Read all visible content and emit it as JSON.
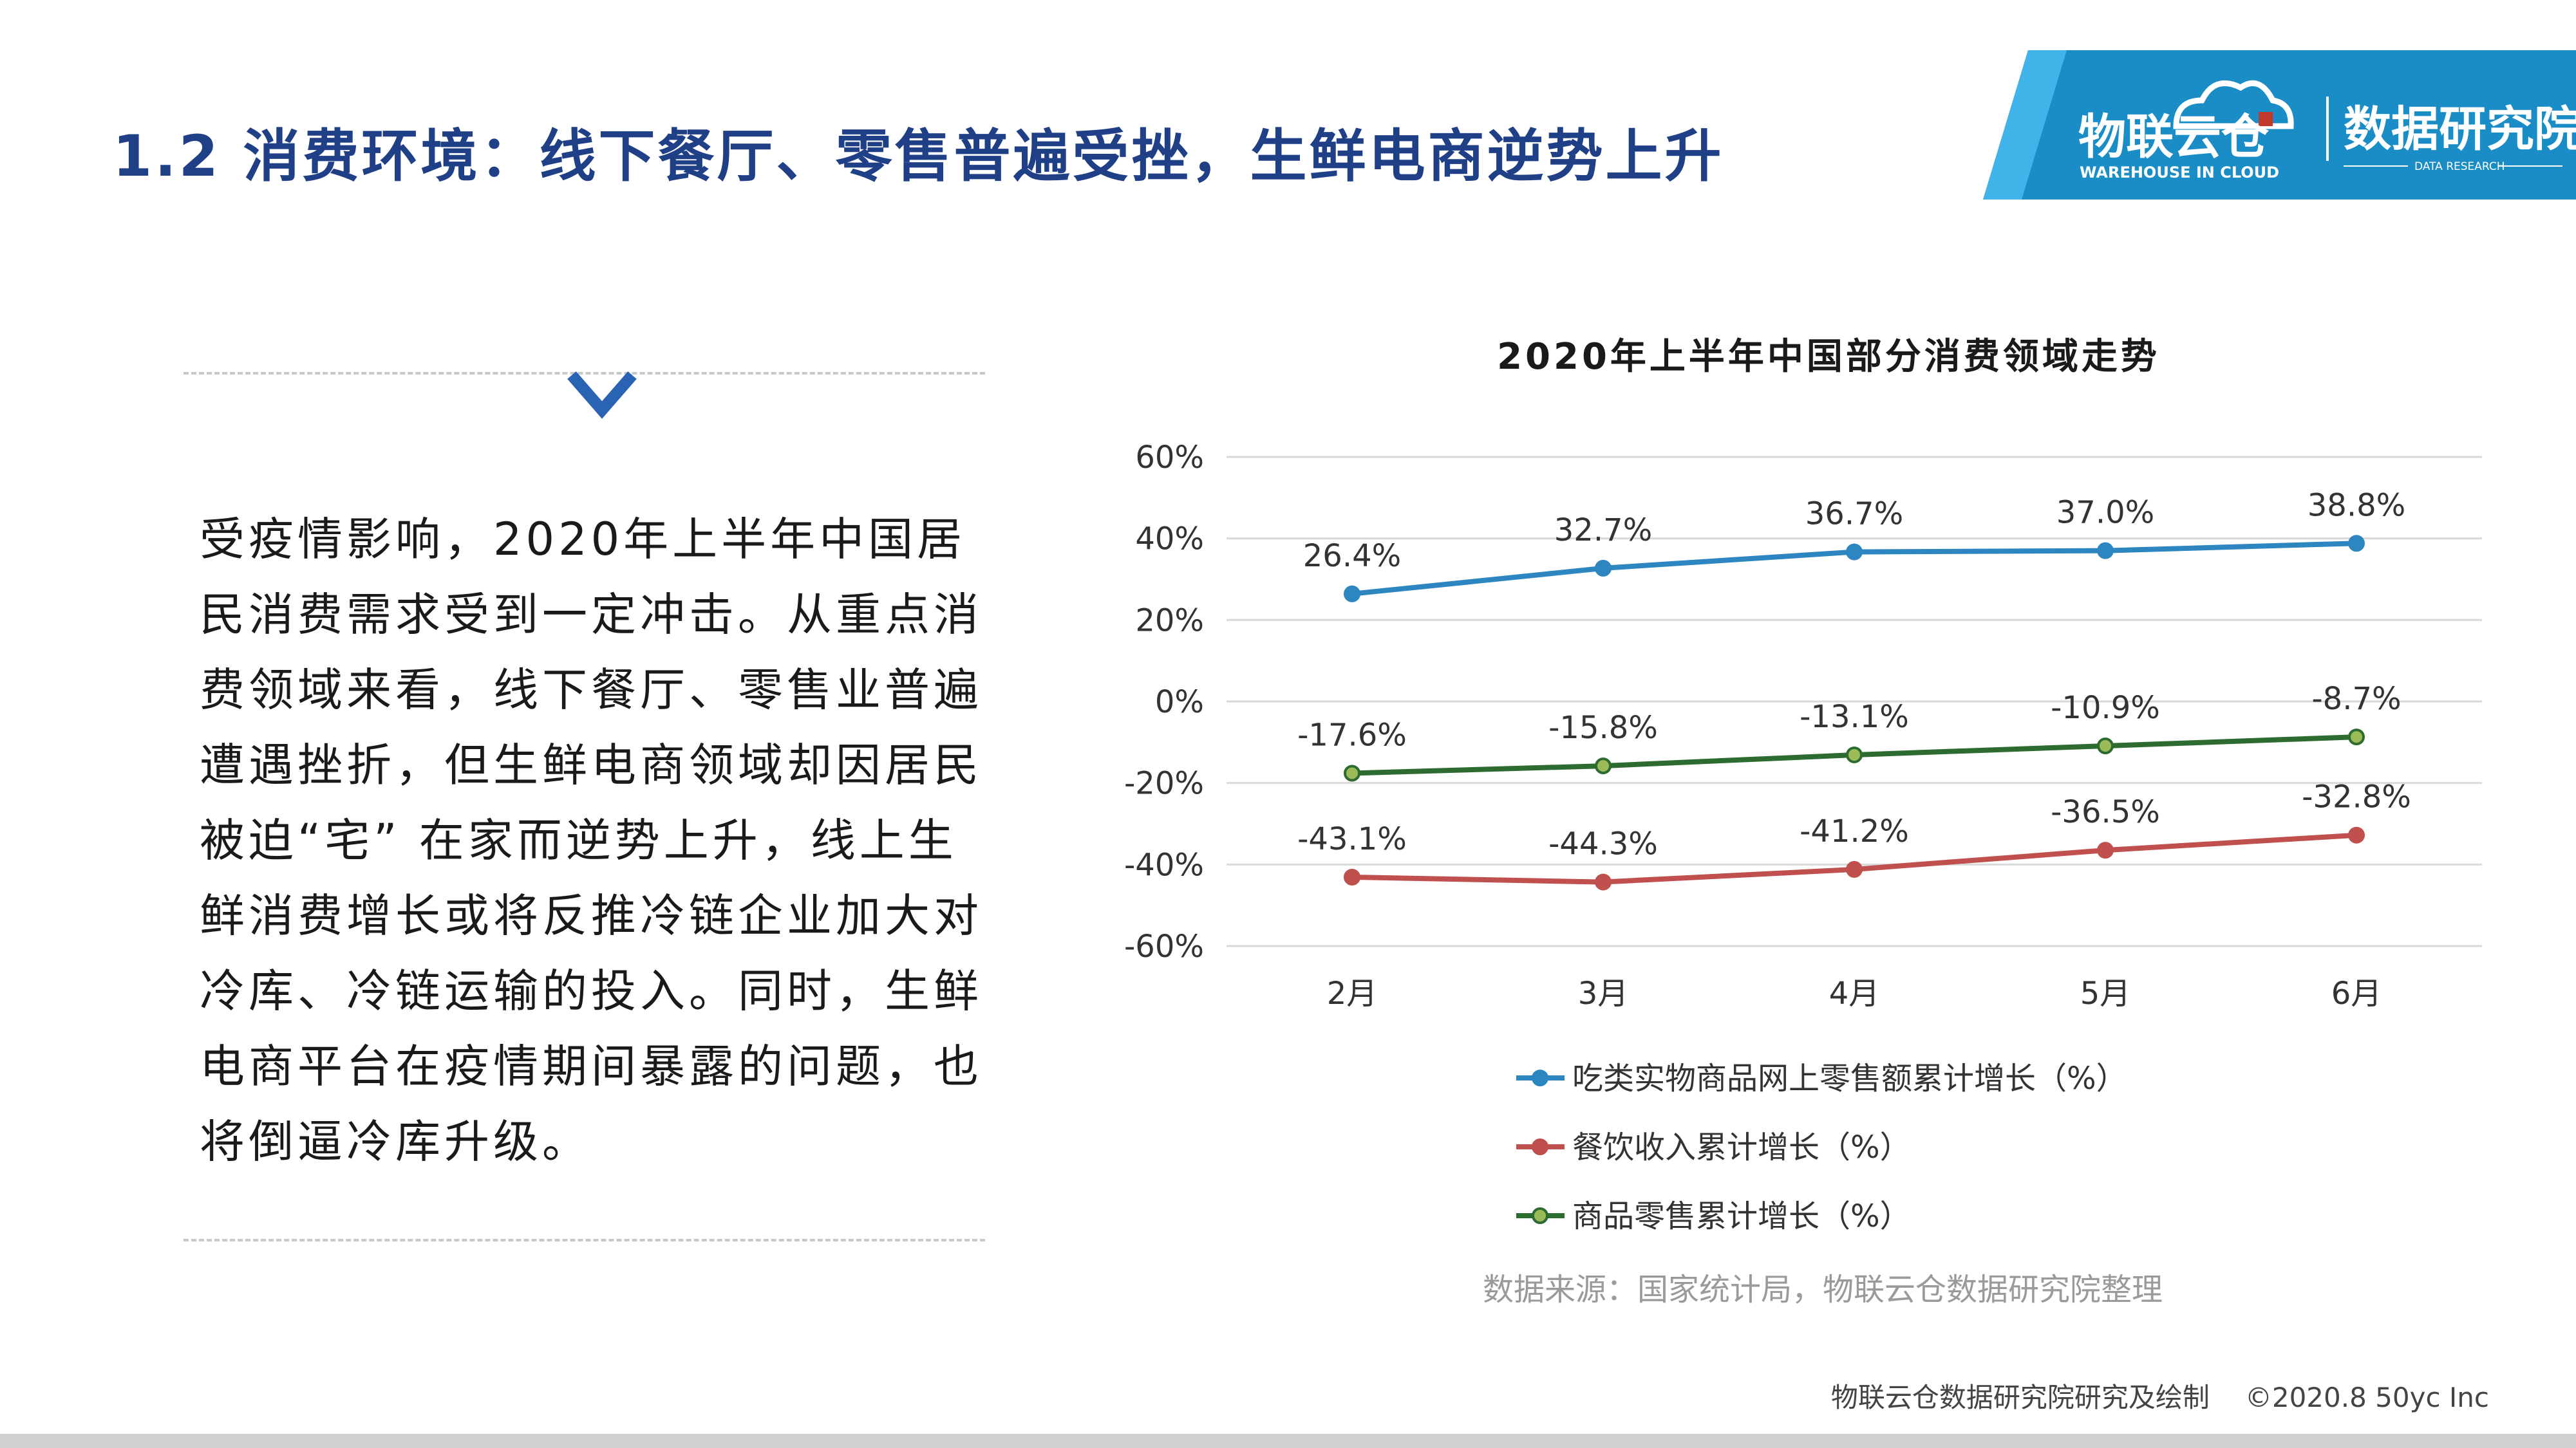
{
  "header": {
    "title": "1.2 消费环境：线下餐厅、零售普遍受挫，生鲜电商逆势上升",
    "logo_brand": "物联云仓",
    "logo_brand_en": "WAREHOUSE IN CLOUD",
    "logo_dept": "数据研究院",
    "logo_dept_en": "DATA RESEARCH"
  },
  "body": {
    "paragraph": "受疫情影响，2020年上半年中国居民消费需求受到一定冲击。从重点消费领域来看，线下餐厅、零售业普遍遭遇挫折，但生鲜电商领域却因居民被迫“宅” 在家而逆势上升，线上生鲜消费增长或将反推冷链企业加大对冷库、冷链运输的投入。同时，生鲜电商平台在疫情期间暴露的问题，也将倒逼冷库升级。"
  },
  "chart_data": {
    "type": "line",
    "title": "2020年上半年中国部分消费领域走势",
    "categories": [
      "2月",
      "3月",
      "4月",
      "5月",
      "6月"
    ],
    "ylim": [
      -60,
      60
    ],
    "yticks": [
      60,
      40,
      20,
      0,
      -20,
      -40,
      -60
    ],
    "ytick_labels": [
      "60%",
      "40%",
      "20%",
      "0%",
      "-20%",
      "-40%",
      "-60%"
    ],
    "grid": true,
    "legend_position": "bottom",
    "series": [
      {
        "name": "吃类实物商品网上零售额累计增长（%）",
        "values": [
          26.4,
          32.7,
          36.7,
          37.0,
          38.8
        ],
        "labels": [
          "26.4%",
          "32.7%",
          "36.7%",
          "37.0%",
          "38.8%"
        ],
        "color": "#2e86c1",
        "fill": "#2e86c1"
      },
      {
        "name": "餐饮收入累计增长（%）",
        "values": [
          -43.1,
          -44.3,
          -41.2,
          -36.5,
          -32.8
        ],
        "labels": [
          "-43.1%",
          "-44.3%",
          "-41.2%",
          "-36.5%",
          "-32.8%"
        ],
        "color": "#c0504d",
        "fill": "#c0504d"
      },
      {
        "name": "商品零售累计增长（%）",
        "values": [
          -17.6,
          -15.8,
          -13.1,
          -10.9,
          -8.7
        ],
        "labels": [
          "-17.6%",
          "-15.8%",
          "-13.1%",
          "-10.9%",
          "-8.7%"
        ],
        "color": "#2e6b30",
        "fill": "#9bbb59"
      }
    ],
    "source": "数据来源：国家统计局，物联云仓数据研究院整理"
  },
  "footer": {
    "credit": "物联云仓数据研究院研究及绘制",
    "copyright": "©2020.8 50yc Inc"
  }
}
